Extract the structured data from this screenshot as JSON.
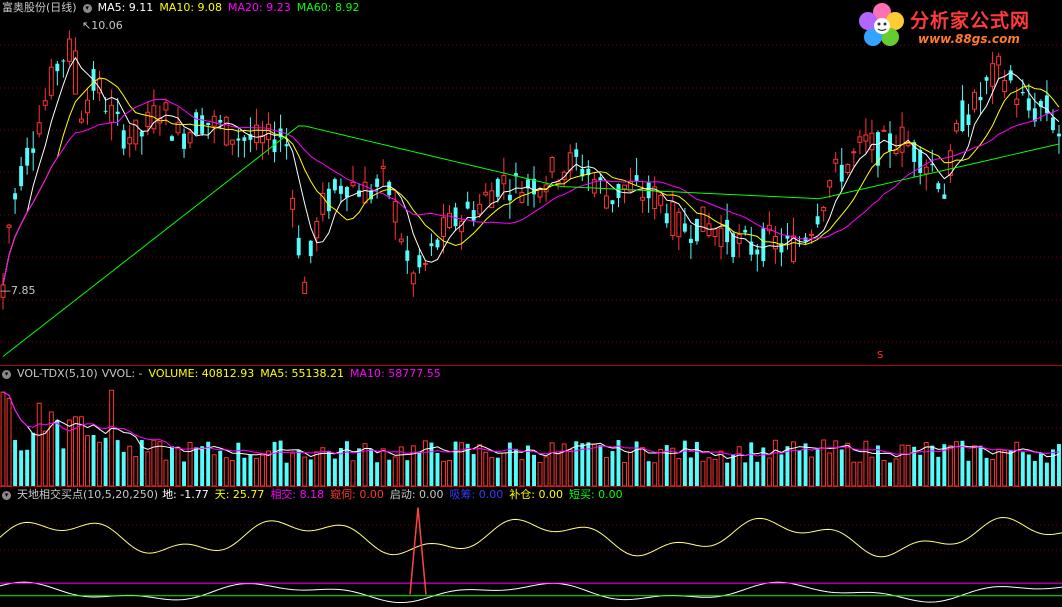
{
  "price_header": {
    "stock_name": "富奥股份(日线)",
    "ma5": "MA5: 9.11",
    "ma10": "MA10: 9.08",
    "ma20": "MA20: 9.23",
    "ma60": "MA60: 8.92"
  },
  "volume_header": {
    "indicator": "VOL-TDX(5,10)",
    "vvol": "VVOL: -",
    "volume": "VOLUME: 40812.93",
    "ma5": "MA5: 55138.21",
    "ma10": "MA10: 58777.55"
  },
  "indicator_header": {
    "name": "天地相交买点(10,5,20,250)",
    "di": "地: -1.77",
    "tian": "天: 25.77",
    "xiangjiao": "相交: 8.18",
    "kuiti": "窥伺: 0.00",
    "qidong": "启动: 0.00",
    "xiduo": "吸筹: 0.00",
    "bucang": "补仓: 0.00",
    "duanmai": "短买: 0.00"
  },
  "annotations": {
    "high_label": "10.06",
    "low_label": "7.85",
    "signal_marker": "S"
  },
  "logo": {
    "brand": "分析家公式网",
    "url": "www.88gs.com"
  },
  "colors": {
    "up": "#ff3333",
    "down": "#54fcfc",
    "ma5": "#ffffff",
    "ma10": "#ffff00",
    "ma20": "#ff00ff",
    "ma60": "#00ff00",
    "grid": "#800000",
    "vol_ma5": "#ffffff",
    "vol_ma10": "#ff00ff",
    "tian": "#ffff80",
    "di": "#ffffff",
    "xiangjiao": "#ff4444",
    "ind_line_magenta": "#ff00ff",
    "ind_line_green": "#00ff00"
  },
  "chart_data": {
    "type": "candlestick",
    "price_ylim": [
      7.4,
      10.25
    ],
    "volume_ylim": [
      0,
      180000
    ],
    "indicator_ylim": [
      -5,
      40
    ],
    "max_price": 10.06,
    "min_price": 7.85
  }
}
